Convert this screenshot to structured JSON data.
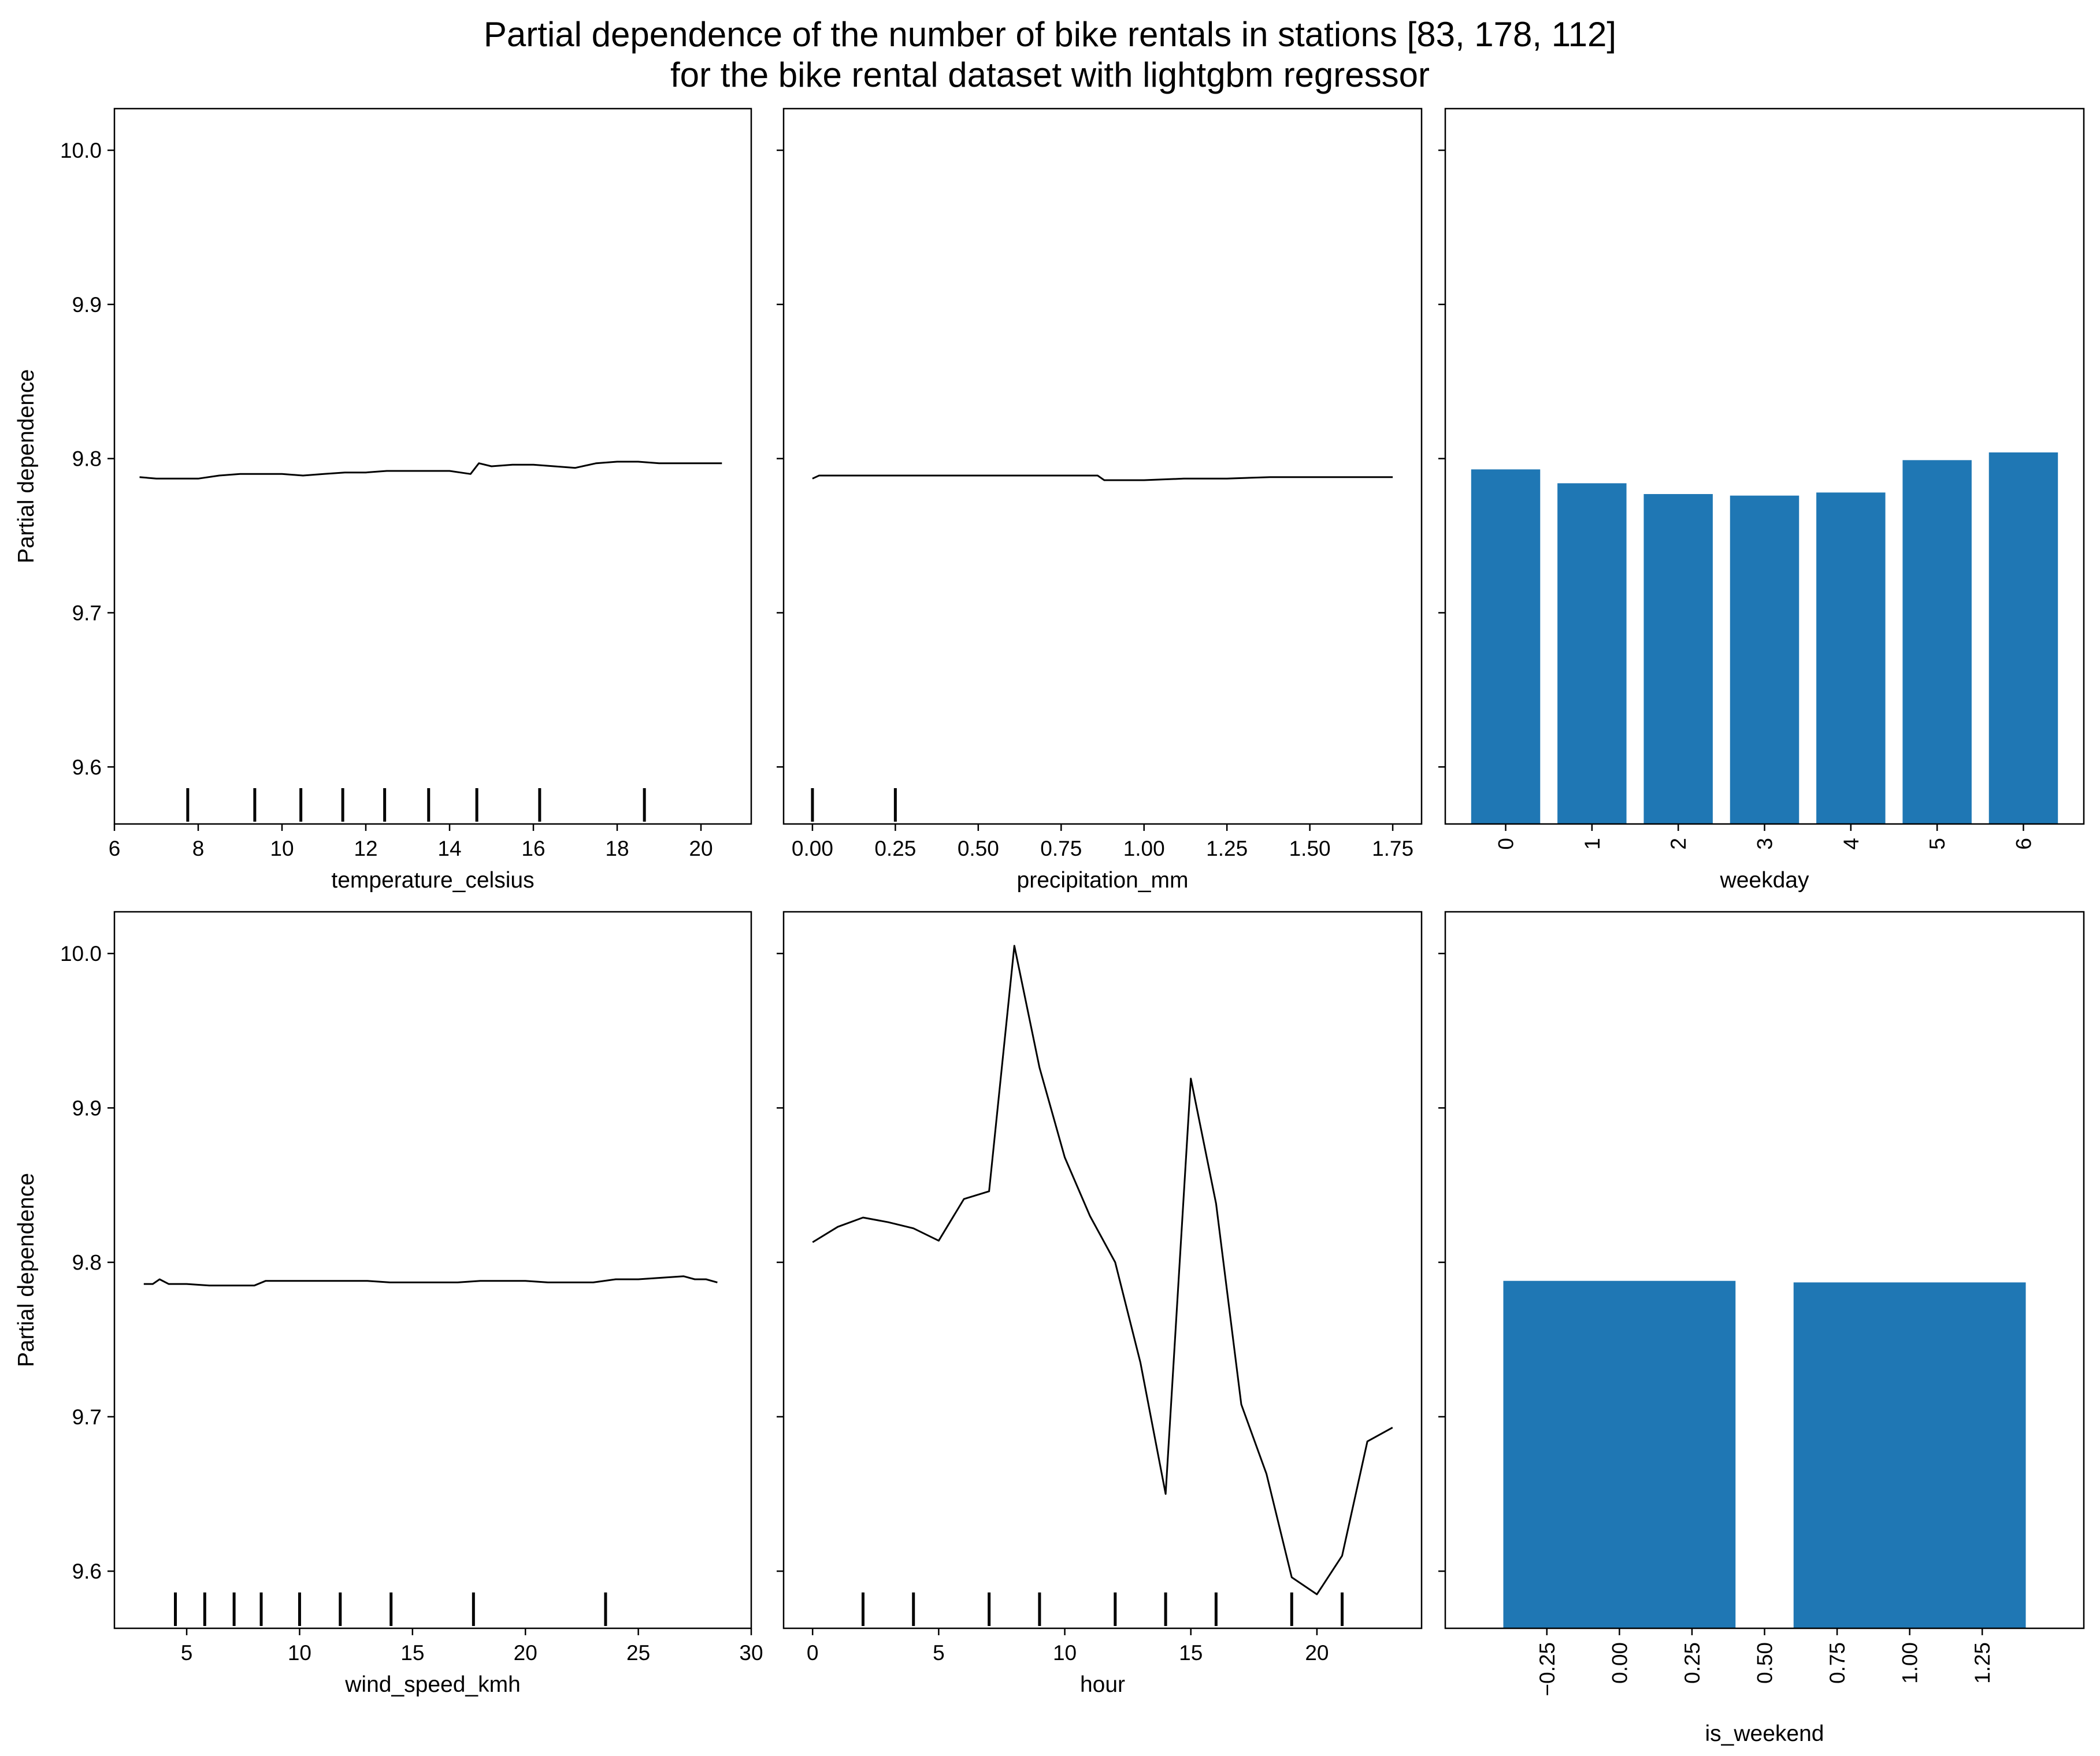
{
  "figure": {
    "title_line1": "Partial dependence of the number of bike rentals in stations [83, 178, 112]",
    "title_line2": "for the bike rental dataset with lightgbm regressor"
  },
  "colors": {
    "bar": "#1f77b4",
    "line": "#000000",
    "axes": "#000000",
    "background": "#ffffff"
  },
  "chart_data": [
    {
      "type": "line",
      "xlabel": "temperature_celsius",
      "ylabel": "Partial dependence",
      "xlim": [
        6.0,
        21.2
      ],
      "ylim": [
        9.563,
        10.027
      ],
      "xticks": [
        6,
        8,
        10,
        12,
        14,
        16,
        18,
        20
      ],
      "yticks": [
        9.6,
        9.7,
        9.8,
        9.9,
        10.0
      ],
      "x": [
        6.6,
        7.0,
        7.5,
        8.0,
        8.5,
        9.0,
        9.5,
        10.0,
        10.5,
        11.0,
        11.5,
        12.0,
        12.5,
        13.0,
        13.5,
        14.0,
        14.5,
        14.7,
        15.0,
        15.5,
        16.0,
        16.5,
        17.0,
        17.5,
        18.0,
        18.5,
        19.0,
        19.5,
        20.0,
        20.5
      ],
      "y": [
        9.788,
        9.787,
        9.787,
        9.787,
        9.789,
        9.79,
        9.79,
        9.79,
        9.789,
        9.79,
        9.791,
        9.791,
        9.792,
        9.792,
        9.792,
        9.792,
        9.79,
        9.797,
        9.795,
        9.796,
        9.796,
        9.795,
        9.794,
        9.797,
        9.798,
        9.798,
        9.797,
        9.797,
        9.797,
        9.797
      ],
      "rug": [
        7.75,
        9.35,
        10.45,
        11.45,
        12.45,
        13.5,
        14.65,
        16.15,
        18.65
      ]
    },
    {
      "type": "line",
      "xlabel": "precipitation_mm",
      "ylabel": "",
      "xlim": [
        -0.087,
        1.837
      ],
      "ylim": [
        9.563,
        10.027
      ],
      "xticks": [
        0.0,
        0.25,
        0.5,
        0.75,
        1.0,
        1.25,
        1.5,
        1.75
      ],
      "xtick_labels": [
        "0.00",
        "0.25",
        "0.50",
        "0.75",
        "1.00",
        "1.25",
        "1.50",
        "1.75"
      ],
      "yticks": [
        9.6,
        9.7,
        9.8,
        9.9,
        10.0
      ],
      "x": [
        0.0,
        0.02,
        0.25,
        0.38,
        0.5,
        0.75,
        0.86,
        0.88,
        1.0,
        1.12,
        1.25,
        1.38,
        1.5,
        1.62,
        1.75
      ],
      "y": [
        9.787,
        9.789,
        9.789,
        9.789,
        9.789,
        9.789,
        9.789,
        9.786,
        9.786,
        9.787,
        9.787,
        9.788,
        9.788,
        9.788,
        9.788
      ],
      "rug": [
        0.0,
        0.25
      ]
    },
    {
      "type": "bar",
      "xlabel": "weekday",
      "ylabel": "",
      "ylim": [
        9.563,
        10.027
      ],
      "yticks": [
        9.6,
        9.7,
        9.8,
        9.9,
        10.0
      ],
      "categories": [
        "0",
        "1",
        "2",
        "3",
        "4",
        "5",
        "6"
      ],
      "values": [
        9.793,
        9.784,
        9.777,
        9.776,
        9.778,
        9.799,
        9.804
      ]
    },
    {
      "type": "line",
      "xlabel": "wind_speed_kmh",
      "ylabel": "Partial dependence",
      "xlim": [
        1.8,
        30.0
      ],
      "ylim": [
        9.563,
        10.027
      ],
      "xticks": [
        5,
        10,
        15,
        20,
        25,
        30
      ],
      "yticks": [
        9.6,
        9.7,
        9.8,
        9.9,
        10.0
      ],
      "x": [
        3.1,
        3.5,
        3.8,
        4.2,
        5.0,
        6.0,
        7.0,
        8.0,
        8.5,
        9.0,
        10.0,
        11.0,
        12.0,
        13.0,
        14.0,
        15.0,
        16.0,
        17.0,
        18.0,
        19.0,
        20.0,
        21.0,
        22.0,
        23.0,
        24.0,
        25.0,
        26.0,
        27.0,
        27.5,
        28.0,
        28.5
      ],
      "y": [
        9.786,
        9.786,
        9.789,
        9.786,
        9.786,
        9.785,
        9.785,
        9.785,
        9.788,
        9.788,
        9.788,
        9.788,
        9.788,
        9.788,
        9.787,
        9.787,
        9.787,
        9.787,
        9.788,
        9.788,
        9.788,
        9.787,
        9.787,
        9.787,
        9.789,
        9.789,
        9.79,
        9.791,
        9.789,
        9.789,
        9.787
      ],
      "rug": [
        4.5,
        5.8,
        7.1,
        8.3,
        10.0,
        11.8,
        14.05,
        17.7,
        23.55
      ]
    },
    {
      "type": "line",
      "xlabel": "hour",
      "ylabel": "",
      "xlim": [
        -1.15,
        24.15
      ],
      "ylim": [
        9.563,
        10.027
      ],
      "xticks": [
        0,
        5,
        10,
        15,
        20
      ],
      "yticks": [
        9.6,
        9.7,
        9.8,
        9.9,
        10.0
      ],
      "x": [
        0,
        1,
        2,
        3,
        4,
        5,
        6,
        7,
        8,
        9,
        10,
        11,
        12,
        13,
        14,
        15,
        16,
        17,
        18,
        19,
        20,
        21,
        22,
        23
      ],
      "y": [
        9.813,
        9.823,
        9.829,
        9.826,
        9.822,
        9.814,
        9.841,
        9.846,
        10.005,
        9.926,
        9.868,
        9.83,
        9.8,
        9.735,
        9.65,
        9.919,
        9.838,
        9.708,
        9.663,
        9.596,
        9.585,
        9.61,
        9.684,
        9.693
      ],
      "rug": [
        2,
        4,
        7,
        9,
        12,
        14,
        16,
        19,
        21
      ]
    },
    {
      "type": "bar",
      "xlabel": "is_weekend",
      "ylabel": "",
      "ylim": [
        9.563,
        10.027
      ],
      "yticks": [
        9.6,
        9.7,
        9.8,
        9.9,
        10.0
      ],
      "xlim": [
        -0.6,
        1.6
      ],
      "xticks": [
        -0.25,
        0.0,
        0.25,
        0.5,
        0.75,
        1.0,
        1.25
      ],
      "xtick_labels": [
        "−0.25",
        "0.00",
        "0.25",
        "0.50",
        "0.75",
        "1.00",
        "1.25"
      ],
      "categories": [
        0,
        1
      ],
      "values": [
        9.788,
        9.787
      ]
    }
  ]
}
